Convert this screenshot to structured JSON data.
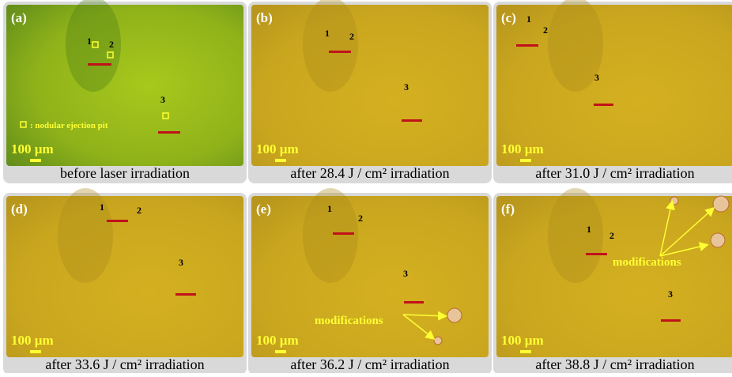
{
  "panels": [
    {
      "label": "(a)",
      "caption": "before laser irradiation",
      "scale_bar": "100 µm",
      "points": [
        "1",
        "2",
        "3"
      ],
      "legend": ": nodular ejection pit"
    },
    {
      "label": "(b)",
      "caption": "after 28.4 J / cm² irradiation",
      "scale_bar": "100 µm",
      "points": [
        "1",
        "2",
        "3"
      ]
    },
    {
      "label": "(c)",
      "caption": "after 31.0 J / cm² irradiation",
      "scale_bar": "100 µm",
      "points": [
        "1",
        "2",
        "3"
      ]
    },
    {
      "label": "(d)",
      "caption": "after 33.6 J / cm² irradiation",
      "scale_bar": "100 µm",
      "points": [
        "1",
        "2",
        "3"
      ]
    },
    {
      "label": "(e)",
      "caption": "after 36.2 J / cm² irradiation",
      "scale_bar": "100 µm",
      "points": [
        "1",
        "2",
        "3"
      ],
      "annotation": "modifications"
    },
    {
      "label": "(f)",
      "caption": "after 38.8 J / cm² irradiation",
      "scale_bar": "100 µm",
      "points": [
        "1",
        "2",
        "3"
      ],
      "annotation": "modifications"
    }
  ]
}
